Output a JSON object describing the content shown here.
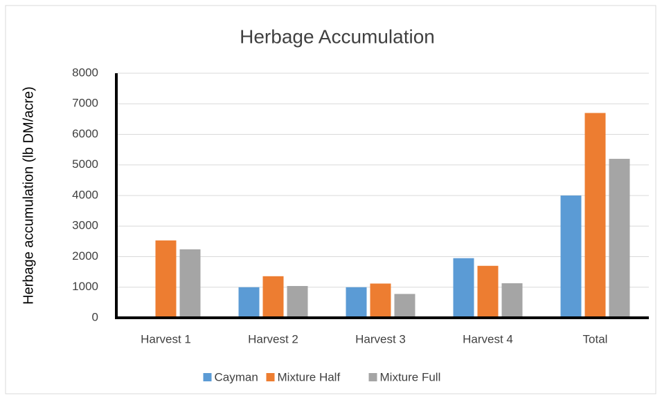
{
  "chart_data": {
    "type": "bar",
    "title": "Herbage Accumulation",
    "y_label": "Herbage accumulation (lb DM/acre)",
    "categories": [
      "Harvest 1",
      "Harvest 2",
      "Harvest 3",
      "Harvest 4",
      "Total"
    ],
    "series": [
      {
        "name": "Cayman",
        "color": "#5b9bd5",
        "values": [
          null,
          1000,
          1000,
          1950,
          4000
        ]
      },
      {
        "name": "Mixture Half",
        "color": "#ed7d31",
        "values": [
          2530,
          1360,
          1120,
          1700,
          6700
        ]
      },
      {
        "name": "Mixture Full",
        "color": "#a5a5a5",
        "values": [
          2240,
          1040,
          780,
          1130,
          5200
        ]
      }
    ],
    "ylim": [
      0,
      8000
    ],
    "yticks": [
      0,
      1000,
      2000,
      3000,
      4000,
      5000,
      6000,
      7000,
      8000
    ],
    "grid": true,
    "legend": "bottom"
  }
}
